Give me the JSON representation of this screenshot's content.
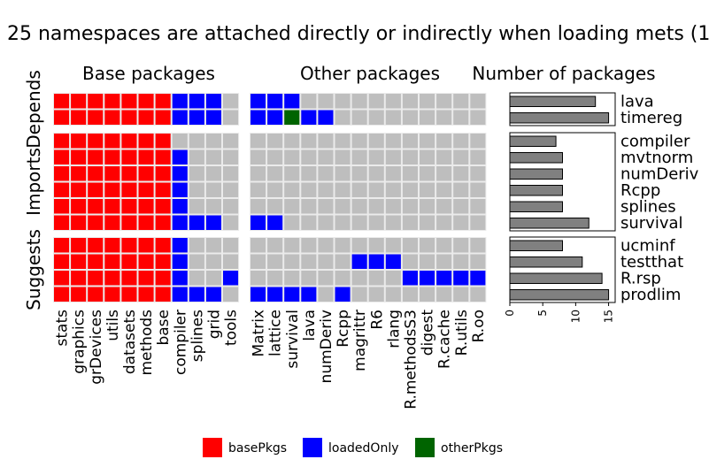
{
  "chart_data": {
    "type": "heatmap",
    "title": "25 namespaces are attached directly or indirectly when loading mets (1",
    "panel_titles": {
      "base": "Base packages",
      "other": "Other packages",
      "count": "Number of packages"
    },
    "base_packages": [
      "stats",
      "graphics",
      "grDevices",
      "utils",
      "datasets",
      "methods",
      "base",
      "compiler",
      "splines",
      "grid",
      "tools"
    ],
    "other_packages": [
      "Matrix",
      "lattice",
      "survival",
      "lava",
      "numDeriv",
      "Rcpp",
      "magrittr",
      "R6",
      "rlang",
      "R.methodsS3",
      "digest",
      "R.cache",
      "R.utils",
      "R.oo"
    ],
    "groups": [
      {
        "name": "Depends",
        "rows": [
          {
            "name": "lava",
            "count": 13,
            "base": [
              "basePkgs",
              "basePkgs",
              "basePkgs",
              "basePkgs",
              "basePkgs",
              "basePkgs",
              "basePkgs",
              "loadedOnly",
              "loadedOnly",
              "loadedOnly",
              "none"
            ],
            "other": [
              "loadedOnly",
              "loadedOnly",
              "loadedOnly",
              "none",
              "none",
              "none",
              "none",
              "none",
              "none",
              "none",
              "none",
              "none",
              "none",
              "none"
            ]
          },
          {
            "name": "timereg",
            "count": 15,
            "base": [
              "basePkgs",
              "basePkgs",
              "basePkgs",
              "basePkgs",
              "basePkgs",
              "basePkgs",
              "basePkgs",
              "loadedOnly",
              "loadedOnly",
              "loadedOnly",
              "none"
            ],
            "other": [
              "loadedOnly",
              "loadedOnly",
              "otherPkgs",
              "loadedOnly",
              "loadedOnly",
              "none",
              "none",
              "none",
              "none",
              "none",
              "none",
              "none",
              "none",
              "none"
            ]
          }
        ]
      },
      {
        "name": "Imports",
        "rows": [
          {
            "name": "compiler",
            "count": 7,
            "base": [
              "basePkgs",
              "basePkgs",
              "basePkgs",
              "basePkgs",
              "basePkgs",
              "basePkgs",
              "basePkgs",
              "none",
              "none",
              "none",
              "none"
            ],
            "other": [
              "none",
              "none",
              "none",
              "none",
              "none",
              "none",
              "none",
              "none",
              "none",
              "none",
              "none",
              "none",
              "none",
              "none"
            ]
          },
          {
            "name": "mvtnorm",
            "count": 8,
            "base": [
              "basePkgs",
              "basePkgs",
              "basePkgs",
              "basePkgs",
              "basePkgs",
              "basePkgs",
              "basePkgs",
              "loadedOnly",
              "none",
              "none",
              "none"
            ],
            "other": [
              "none",
              "none",
              "none",
              "none",
              "none",
              "none",
              "none",
              "none",
              "none",
              "none",
              "none",
              "none",
              "none",
              "none"
            ]
          },
          {
            "name": "numDeriv",
            "count": 8,
            "base": [
              "basePkgs",
              "basePkgs",
              "basePkgs",
              "basePkgs",
              "basePkgs",
              "basePkgs",
              "basePkgs",
              "loadedOnly",
              "none",
              "none",
              "none"
            ],
            "other": [
              "none",
              "none",
              "none",
              "none",
              "none",
              "none",
              "none",
              "none",
              "none",
              "none",
              "none",
              "none",
              "none",
              "none"
            ]
          },
          {
            "name": "Rcpp",
            "count": 8,
            "base": [
              "basePkgs",
              "basePkgs",
              "basePkgs",
              "basePkgs",
              "basePkgs",
              "basePkgs",
              "basePkgs",
              "loadedOnly",
              "none",
              "none",
              "none"
            ],
            "other": [
              "none",
              "none",
              "none",
              "none",
              "none",
              "none",
              "none",
              "none",
              "none",
              "none",
              "none",
              "none",
              "none",
              "none"
            ]
          },
          {
            "name": "splines",
            "count": 8,
            "base": [
              "basePkgs",
              "basePkgs",
              "basePkgs",
              "basePkgs",
              "basePkgs",
              "basePkgs",
              "basePkgs",
              "loadedOnly",
              "none",
              "none",
              "none"
            ],
            "other": [
              "none",
              "none",
              "none",
              "none",
              "none",
              "none",
              "none",
              "none",
              "none",
              "none",
              "none",
              "none",
              "none",
              "none"
            ]
          },
          {
            "name": "survival",
            "count": 12,
            "base": [
              "basePkgs",
              "basePkgs",
              "basePkgs",
              "basePkgs",
              "basePkgs",
              "basePkgs",
              "basePkgs",
              "loadedOnly",
              "loadedOnly",
              "loadedOnly",
              "none"
            ],
            "other": [
              "loadedOnly",
              "loadedOnly",
              "none",
              "none",
              "none",
              "none",
              "none",
              "none",
              "none",
              "none",
              "none",
              "none",
              "none",
              "none"
            ]
          }
        ]
      },
      {
        "name": "Suggests",
        "rows": [
          {
            "name": "ucminf",
            "count": 8,
            "base": [
              "basePkgs",
              "basePkgs",
              "basePkgs",
              "basePkgs",
              "basePkgs",
              "basePkgs",
              "basePkgs",
              "loadedOnly",
              "none",
              "none",
              "none"
            ],
            "other": [
              "none",
              "none",
              "none",
              "none",
              "none",
              "none",
              "none",
              "none",
              "none",
              "none",
              "none",
              "none",
              "none",
              "none"
            ]
          },
          {
            "name": "testthat",
            "count": 11,
            "base": [
              "basePkgs",
              "basePkgs",
              "basePkgs",
              "basePkgs",
              "basePkgs",
              "basePkgs",
              "basePkgs",
              "loadedOnly",
              "none",
              "none",
              "none"
            ],
            "other": [
              "none",
              "none",
              "none",
              "none",
              "none",
              "none",
              "loadedOnly",
              "loadedOnly",
              "loadedOnly",
              "none",
              "none",
              "none",
              "none",
              "none"
            ]
          },
          {
            "name": "R.rsp",
            "count": 14,
            "base": [
              "basePkgs",
              "basePkgs",
              "basePkgs",
              "basePkgs",
              "basePkgs",
              "basePkgs",
              "basePkgs",
              "loadedOnly",
              "none",
              "none",
              "loadedOnly"
            ],
            "other": [
              "none",
              "none",
              "none",
              "none",
              "none",
              "none",
              "none",
              "none",
              "none",
              "loadedOnly",
              "loadedOnly",
              "loadedOnly",
              "loadedOnly",
              "loadedOnly"
            ]
          },
          {
            "name": "prodlim",
            "count": 15,
            "base": [
              "basePkgs",
              "basePkgs",
              "basePkgs",
              "basePkgs",
              "basePkgs",
              "basePkgs",
              "basePkgs",
              "loadedOnly",
              "loadedOnly",
              "loadedOnly",
              "none"
            ],
            "other": [
              "loadedOnly",
              "loadedOnly",
              "loadedOnly",
              "loadedOnly",
              "none",
              "loadedOnly",
              "none",
              "none",
              "none",
              "none",
              "none",
              "none",
              "none",
              "none"
            ]
          }
        ]
      }
    ],
    "bar_axis": {
      "ticks": [
        0,
        5,
        10,
        15
      ],
      "xlim": [
        0,
        16
      ]
    },
    "colors": {
      "basePkgs": "#ff0000",
      "loadedOnly": "#0000ff",
      "otherPkgs": "#006400",
      "none": "#bebebe",
      "bar": "#808080"
    },
    "legend": [
      {
        "key": "basePkgs",
        "label": "basePkgs"
      },
      {
        "key": "loadedOnly",
        "label": "loadedOnly"
      },
      {
        "key": "otherPkgs",
        "label": "otherPkgs"
      }
    ]
  }
}
